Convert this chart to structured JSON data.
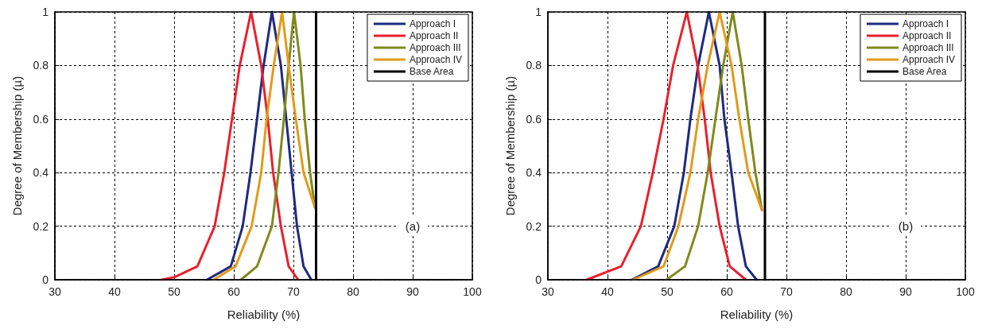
{
  "chart_data": [
    {
      "type": "line",
      "xlabel": "Reliability (%)",
      "ylabel": "Degree of Membership (µ)",
      "xlim": [
        30,
        100
      ],
      "xticks": [
        30,
        40,
        50,
        60,
        70,
        80,
        90,
        100
      ],
      "ylim": [
        0,
        1
      ],
      "yticks": [
        0,
        0.2,
        0.4,
        0.6,
        0.8,
        1
      ],
      "grid": true,
      "legend": "top right",
      "marker": "none",
      "line_style": "solid",
      "annotations": [
        {
          "text": "(a)",
          "x": 90,
          "y": 0.2
        }
      ],
      "series": [
        {
          "name": "Approach I",
          "color": "#1f2a80",
          "x": [
            55.5,
            59.5,
            61.5,
            62.8,
            63.9,
            65.0,
            66.4,
            67.9,
            68.8,
            69.7,
            70.6,
            71.7,
            73.0
          ],
          "values": [
            0,
            0.05,
            0.2,
            0.4,
            0.6,
            0.8,
            1,
            0.8,
            0.6,
            0.4,
            0.2,
            0.05,
            0
          ]
        },
        {
          "name": "Approach II",
          "color": "#e8212e",
          "x": [
            47.9,
            50.1,
            53.9,
            56.8,
            58.4,
            59.7,
            61.0,
            62.9,
            64.6,
            65.7,
            66.6,
            67.9,
            69.2,
            70.8
          ],
          "values": [
            0,
            0.01,
            0.05,
            0.2,
            0.4,
            0.6,
            0.8,
            1,
            0.8,
            0.6,
            0.4,
            0.2,
            0.05,
            0
          ]
        },
        {
          "name": "Approach III",
          "color": "#7f8a1c",
          "x": [
            61.2,
            63.9,
            66.4,
            67.5,
            68.4,
            69.2,
            70.1,
            71.2,
            71.9,
            72.8,
            73.6
          ],
          "values": [
            0,
            0.05,
            0.2,
            0.4,
            0.6,
            0.8,
            1,
            0.8,
            0.6,
            0.4,
            0.27
          ]
        },
        {
          "name": "Approach IV",
          "color": "#e39a1a",
          "x": [
            56.6,
            60.3,
            63.0,
            64.6,
            65.5,
            66.7,
            68.1,
            69.2,
            70.4,
            71.7,
            73.6
          ],
          "values": [
            0,
            0.05,
            0.2,
            0.4,
            0.6,
            0.8,
            1,
            0.8,
            0.6,
            0.4,
            0.27
          ]
        },
        {
          "name": "Base Area",
          "color": "#000000",
          "x": [
            73.8,
            73.8
          ],
          "values": [
            0,
            1
          ]
        }
      ]
    },
    {
      "type": "line",
      "xlabel": "Reliability (%)",
      "ylabel": "Degree of Membership (µ)",
      "xlim": [
        30,
        100
      ],
      "xticks": [
        30,
        40,
        50,
        60,
        70,
        80,
        90,
        100
      ],
      "ylim": [
        0,
        1
      ],
      "yticks": [
        0,
        0.2,
        0.4,
        0.6,
        0.8,
        1
      ],
      "grid": true,
      "legend": "top right",
      "marker": "none",
      "line_style": "solid",
      "annotations": [
        {
          "text": "(b)",
          "x": 90,
          "y": 0.2
        }
      ],
      "series": [
        {
          "name": "Approach I",
          "color": "#1f2a80",
          "x": [
            44.1,
            48.5,
            51.2,
            52.8,
            53.9,
            55.2,
            57.0,
            58.8,
            59.6,
            60.8,
            61.9,
            63.2,
            65.0
          ],
          "values": [
            0,
            0.05,
            0.2,
            0.4,
            0.6,
            0.8,
            1,
            0.8,
            0.6,
            0.4,
            0.2,
            0.05,
            0
          ]
        },
        {
          "name": "Approach II",
          "color": "#e8212e",
          "x": [
            36.5,
            42.3,
            45.6,
            47.6,
            49.4,
            51.0,
            53.3,
            55.1,
            56.3,
            57.3,
            58.8,
            60.5,
            63.2
          ],
          "values": [
            0,
            0.05,
            0.2,
            0.4,
            0.6,
            0.8,
            1,
            0.8,
            0.6,
            0.4,
            0.2,
            0.05,
            0
          ]
        },
        {
          "name": "Approach III",
          "color": "#7f8a1c",
          "x": [
            49.9,
            53.0,
            55.2,
            56.8,
            58.1,
            59.4,
            61.0,
            62.5,
            63.6,
            64.8,
            65.9
          ],
          "values": [
            0,
            0.05,
            0.2,
            0.4,
            0.6,
            0.8,
            1,
            0.8,
            0.6,
            0.4,
            0.26
          ]
        },
        {
          "name": "Approach IV",
          "color": "#e39a1a",
          "x": [
            44.3,
            49.4,
            51.9,
            53.9,
            55.2,
            56.8,
            58.8,
            60.8,
            62.1,
            63.6,
            65.9
          ],
          "values": [
            0,
            0.05,
            0.2,
            0.4,
            0.6,
            0.8,
            1,
            0.8,
            0.6,
            0.4,
            0.26
          ]
        },
        {
          "name": "Base Area",
          "color": "#000000",
          "x": [
            66.4,
            66.4
          ],
          "values": [
            0,
            1
          ]
        }
      ]
    }
  ]
}
